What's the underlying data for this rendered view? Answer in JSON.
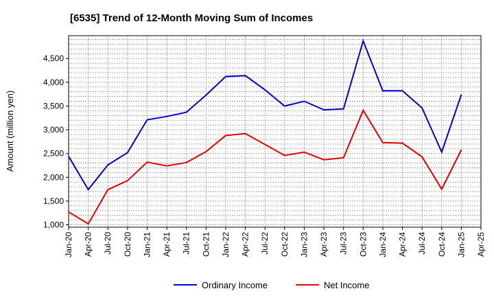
{
  "chart_data": {
    "type": "line",
    "title": "[6535]  Trend of 12-Month Moving Sum of Incomes",
    "xlabel": "",
    "ylabel": "Amount (million yen)",
    "categories": [
      "Jan-20",
      "Apr-20",
      "Jul-20",
      "Oct-20",
      "Jan-21",
      "Apr-21",
      "Jul-21",
      "Oct-21",
      "Jan-22",
      "Apr-22",
      "Jul-22",
      "Oct-22",
      "Jan-23",
      "Apr-23",
      "Jul-23",
      "Oct-23",
      "Jan-24",
      "Apr-24",
      "Jul-24",
      "Oct-24",
      "Jan-25",
      "Apr-25"
    ],
    "ylim": [
      950,
      4980
    ],
    "yticks": [
      1000,
      1500,
      2000,
      2500,
      3000,
      3500,
      4000,
      4500
    ],
    "ytick_labels": [
      "1,000",
      "1,500",
      "2,000",
      "2,500",
      "3,000",
      "3,500",
      "4,000",
      "4,500"
    ],
    "grid": true,
    "series": [
      {
        "name": "Ordinary Income",
        "color": "#0000cc",
        "values": [
          2440,
          1740,
          2260,
          2520,
          3210,
          3280,
          3370,
          3730,
          4120,
          4140,
          3840,
          3500,
          3600,
          3420,
          3440,
          4870,
          3820,
          3820,
          3460,
          2530,
          3740,
          null
        ]
      },
      {
        "name": "Net Income",
        "color": "#e60000",
        "values": [
          1270,
          1020,
          1740,
          1930,
          2320,
          2240,
          2310,
          2540,
          2880,
          2920,
          2690,
          2460,
          2530,
          2370,
          2410,
          3410,
          2730,
          2720,
          2430,
          1750,
          2580,
          null
        ]
      }
    ],
    "legend_position": "bottom-center"
  }
}
